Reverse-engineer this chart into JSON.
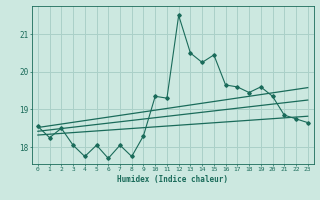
{
  "title": "",
  "xlabel": "Humidex (Indice chaleur)",
  "background_color": "#cce8e0",
  "grid_color": "#aad0c8",
  "line_color": "#1a6b5a",
  "xlim": [
    -0.5,
    23.5
  ],
  "ylim": [
    17.55,
    21.75
  ],
  "yticks": [
    18,
    19,
    20,
    21
  ],
  "xticks": [
    0,
    1,
    2,
    3,
    4,
    5,
    6,
    7,
    8,
    9,
    10,
    11,
    12,
    13,
    14,
    15,
    16,
    17,
    18,
    19,
    20,
    21,
    22,
    23
  ],
  "series1_x": [
    0,
    1,
    2,
    3,
    4,
    5,
    6,
    7,
    8,
    9,
    10,
    11,
    12,
    13,
    14,
    15,
    16,
    17,
    18,
    19,
    20,
    21,
    22,
    23
  ],
  "series1_y": [
    18.55,
    18.25,
    18.5,
    18.05,
    17.75,
    18.05,
    17.7,
    18.05,
    17.75,
    18.3,
    19.35,
    19.3,
    21.5,
    20.5,
    20.25,
    20.45,
    19.65,
    19.6,
    19.45,
    19.6,
    19.35,
    18.85,
    18.75,
    18.65
  ],
  "trend1_x": [
    0,
    23
  ],
  "trend1_y": [
    18.42,
    19.25
  ],
  "trend2_x": [
    0,
    23
  ],
  "trend2_y": [
    18.32,
    18.82
  ],
  "trend3_x": [
    0,
    23
  ],
  "trend3_y": [
    18.52,
    19.58
  ]
}
